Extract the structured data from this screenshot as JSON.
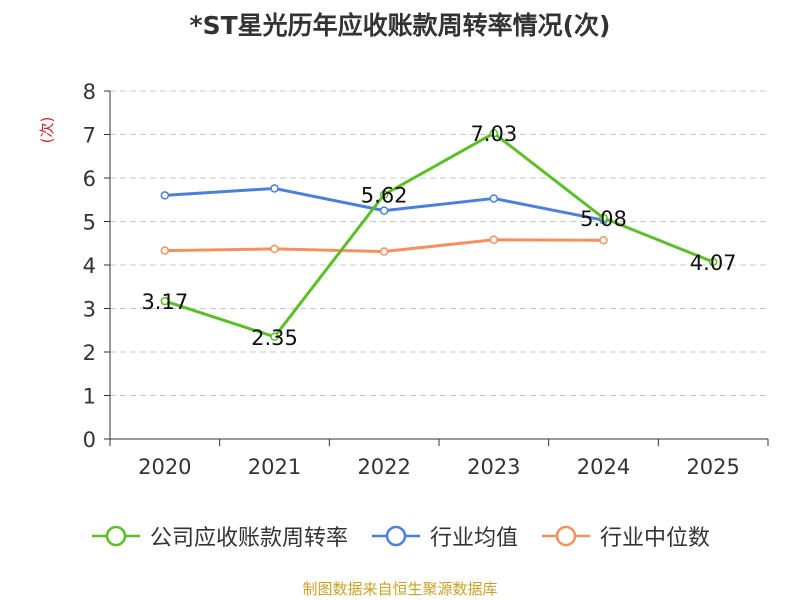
{
  "title": "*ST星光历年应收账款周转率情况(次)",
  "source_note": "制图数据来自恒生聚源数据库",
  "chart_data": {
    "type": "line",
    "title": "*ST星光历年应收账款周转率情况(次)",
    "ylabel": "(次)",
    "xlabel": "",
    "categories": [
      "2020",
      "2021",
      "2022",
      "2023",
      "2024",
      "2025"
    ],
    "ylim": [
      0,
      8
    ],
    "yticks": [
      "0",
      "1",
      "2",
      "3",
      "4",
      "5",
      "6",
      "7",
      "8"
    ],
    "grid": true,
    "legend_position": "bottom",
    "series": [
      {
        "name": "公司应收账款周转率",
        "color": "#5cbf27",
        "values": [
          3.17,
          2.35,
          5.62,
          7.03,
          5.08,
          4.07
        ],
        "labels": [
          "3.17",
          "2.35",
          "5.62",
          "7.03",
          "5.08",
          "4.07"
        ]
      },
      {
        "name": "行业均值",
        "color": "#4a7fdc",
        "values": [
          5.6,
          5.76,
          5.25,
          5.53,
          5.03,
          null
        ]
      },
      {
        "name": "行业中位数",
        "color": "#f4915e",
        "values": [
          4.33,
          4.37,
          4.31,
          4.58,
          4.57,
          null
        ]
      }
    ]
  }
}
